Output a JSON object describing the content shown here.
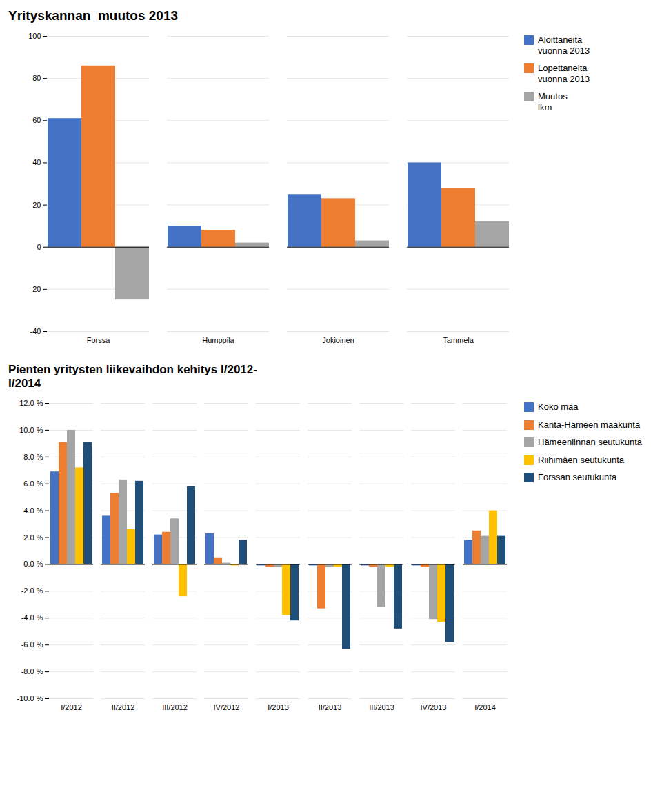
{
  "chart_data": [
    {
      "type": "bar",
      "title": "Yrityskannan  muutos 2013",
      "categories": [
        "Forssa",
        "Humppila",
        "Jokioinen",
        "Tammela"
      ],
      "series": [
        {
          "name": "Aloittaneita\nvuonna 2013",
          "color": "#4472C4",
          "values": [
            61,
            10,
            25,
            40
          ]
        },
        {
          "name": "Lopettaneita\nvuonna 2013",
          "color": "#ED7D31",
          "values": [
            86,
            8,
            23,
            28
          ]
        },
        {
          "name": "Muutos\nlkm",
          "color": "#A5A5A5",
          "values": [
            -25,
            2,
            3,
            12
          ]
        }
      ],
      "ylim": [
        -40,
        100
      ],
      "yticks": [
        -40,
        -20,
        0,
        20,
        40,
        60,
        80,
        100
      ],
      "grid": true,
      "legend": "right"
    },
    {
      "type": "bar",
      "title": "Pienten yritysten liikevaihdon kehitys I/2012-\nI/2014",
      "categories": [
        "I/2012",
        "II/2012",
        "III/2012",
        "IV/2012",
        "I/2013",
        "II/2013",
        "III/2013",
        "IV/2013",
        "I/2014"
      ],
      "series": [
        {
          "name": "Koko maa",
          "color": "#4472C4",
          "values": [
            6.9,
            3.6,
            2.2,
            2.3,
            -0.1,
            -0.1,
            -0.1,
            -0.1,
            1.8
          ]
        },
        {
          "name": "Kanta-Hämeen maakunta",
          "color": "#ED7D31",
          "values": [
            9.1,
            5.3,
            2.4,
            0.5,
            -0.2,
            -3.3,
            -0.2,
            -0.2,
            2.5
          ]
        },
        {
          "name": "Hämeenlinnan seutukunta",
          "color": "#A5A5A5",
          "values": [
            10.0,
            6.3,
            3.4,
            0.1,
            -0.2,
            -0.2,
            -3.2,
            -4.1,
            2.1
          ]
        },
        {
          "name": "Riihimäen seutukunta",
          "color": "#FFC000",
          "values": [
            7.2,
            2.6,
            -2.4,
            -0.1,
            -3.8,
            -0.2,
            -0.2,
            -4.3,
            4.0
          ]
        },
        {
          "name": "Forssan seutukunta",
          "color": "#1F4E79",
          "values": [
            9.1,
            6.2,
            5.8,
            1.8,
            -4.2,
            -6.3,
            -4.8,
            -5.8,
            2.1
          ]
        }
      ],
      "ylim": [
        -10.0,
        12.0
      ],
      "yticks": [
        {
          "value": -10.0,
          "label": "-10.0 %"
        },
        {
          "value": -8.0,
          "label": "-8.0 %"
        },
        {
          "value": -6.0,
          "label": "-6.0 %"
        },
        {
          "value": -4.0,
          "label": "-4.0 %"
        },
        {
          "value": -2.0,
          "label": "-2.0 %"
        },
        {
          "value": 0.0,
          "label": "0.0 %"
        },
        {
          "value": 2.0,
          "label": "2.0 %"
        },
        {
          "value": 4.0,
          "label": "4.0 %"
        },
        {
          "value": 6.0,
          "label": "6.0 %"
        },
        {
          "value": 8.0,
          "label": "8.0 %"
        },
        {
          "value": 10.0,
          "label": "10.0 %"
        },
        {
          "value": 12.0,
          "label": "12.0 %"
        }
      ],
      "grid": true,
      "legend": "right"
    }
  ]
}
